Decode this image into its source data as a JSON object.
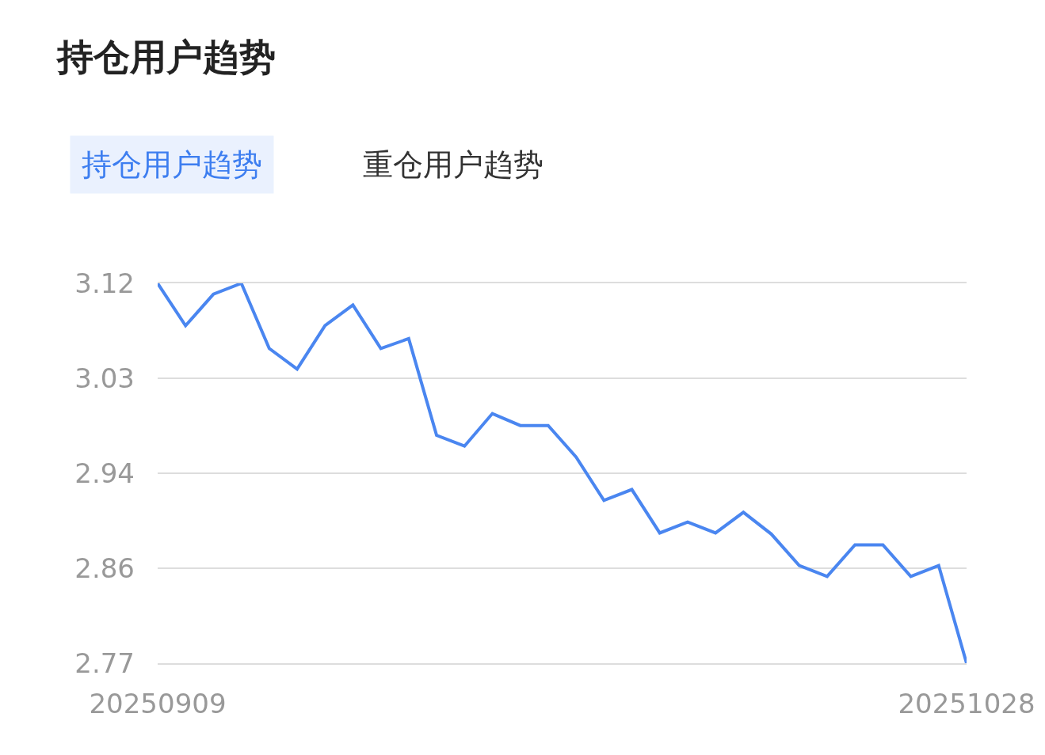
{
  "chart_data": {
    "type": "line",
    "title": "持仓用户趋势",
    "annotations": [
      "持仓用户趋势",
      "重仓用户趋势"
    ],
    "categories": [
      "20250909",
      null,
      null,
      null,
      null,
      null,
      null,
      null,
      null,
      null,
      null,
      null,
      null,
      null,
      null,
      null,
      null,
      null,
      null,
      null,
      null,
      null,
      null,
      null,
      null,
      null,
      null,
      null,
      null,
      "20251028"
    ],
    "series": [
      {
        "color": "#4a86f0",
        "values": [
          3.12,
          3.081,
          3.11,
          3.12,
          3.06,
          3.041,
          3.081,
          3.1,
          3.06,
          3.069,
          2.98,
          2.97,
          3.0,
          2.989,
          2.989,
          2.96,
          2.92,
          2.93,
          2.89,
          2.9,
          2.89,
          2.909,
          2.889,
          2.86,
          2.85,
          2.879,
          2.879,
          2.85,
          2.86,
          2.77
        ]
      }
    ],
    "ylim": [
      2.77,
      3.12
    ],
    "yticks": [
      {
        "value": 3.12,
        "label": "3.12"
      },
      {
        "value": 3.0325,
        "label": "3.03"
      },
      {
        "value": 2.945,
        "label": "2.94"
      },
      {
        "value": 2.8575,
        "label": "2.86"
      },
      {
        "value": 2.77,
        "label": "2.77"
      }
    ],
    "grid": "y",
    "legend": false,
    "marker": "none",
    "line_style": "solid"
  }
}
